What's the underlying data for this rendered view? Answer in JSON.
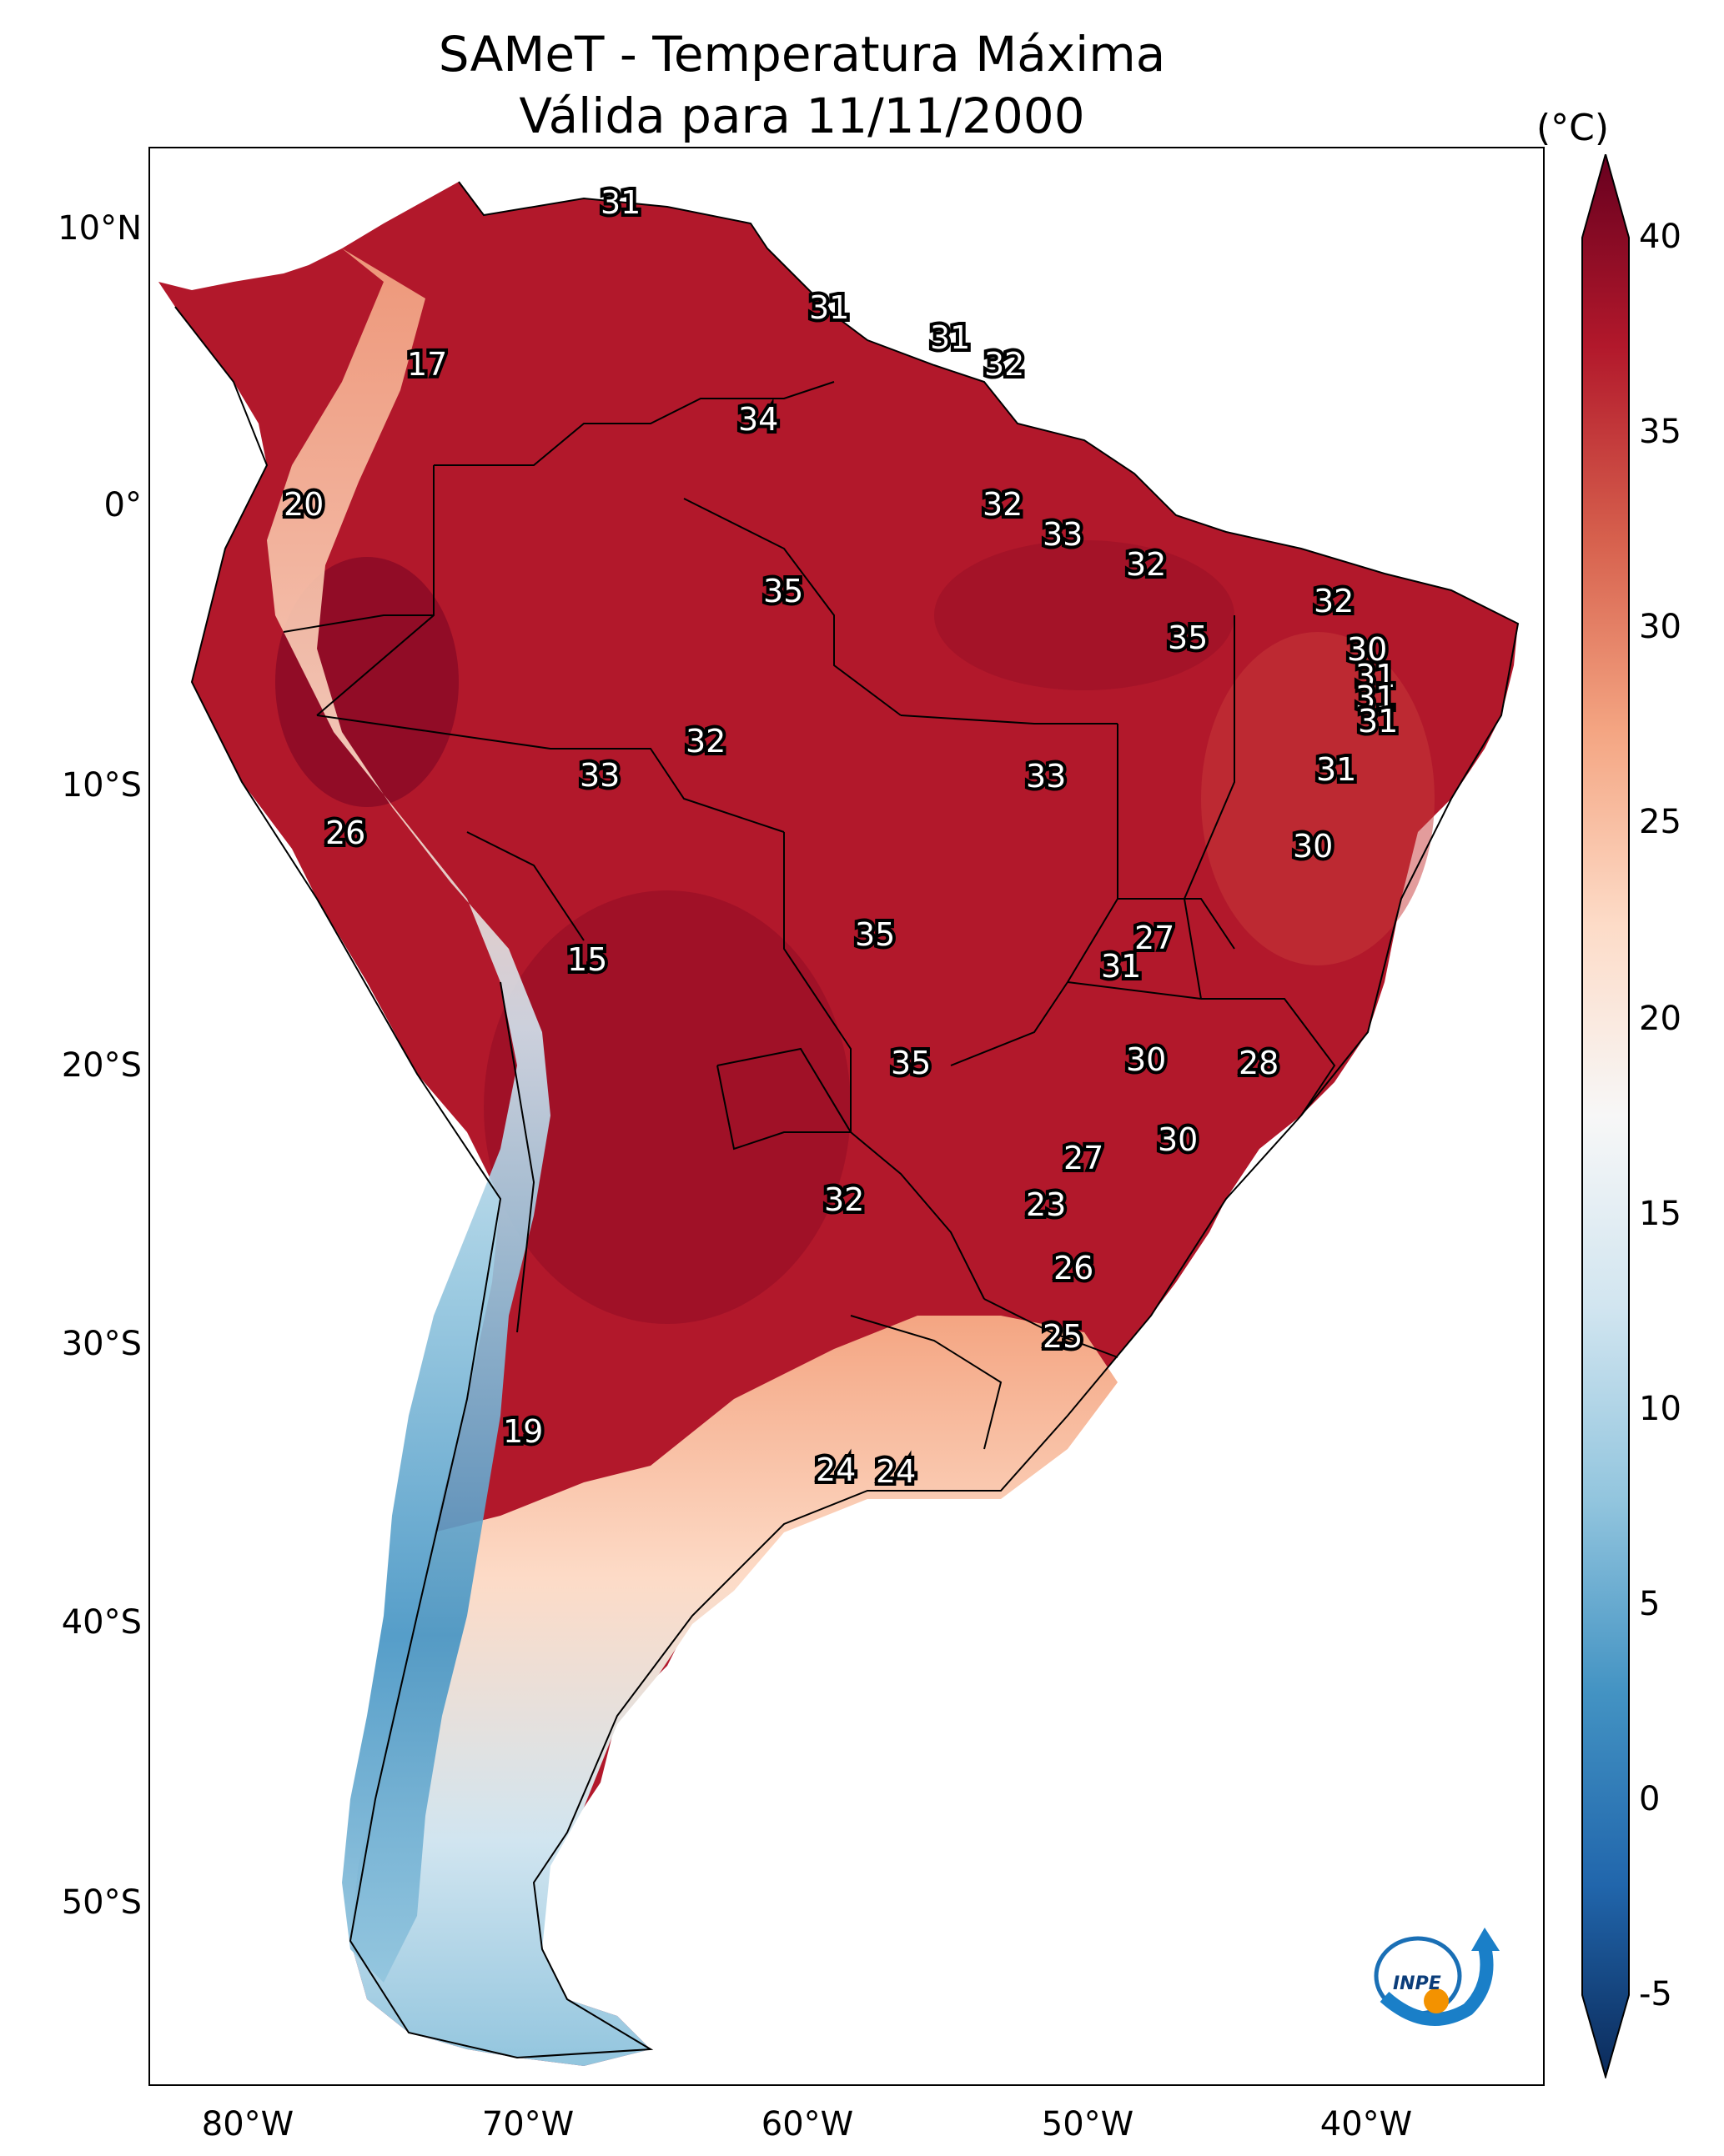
{
  "title_line1": "SAMeT - Temperatura Máxima",
  "title_line2": "Válida para 11/11/2000",
  "colorbar": {
    "unit": "(°C)",
    "ticks": [
      "40",
      "35",
      "30",
      "25",
      "20",
      "15",
      "10",
      "5",
      "0",
      "-5"
    ],
    "range": [
      -5,
      40
    ],
    "colors": [
      "#0b2a5a",
      "#2166ac",
      "#4393c3",
      "#92c5de",
      "#d1e5f0",
      "#f7f7f7",
      "#fddbc7",
      "#f4a582",
      "#d6604d",
      "#b2182b",
      "#67001f"
    ]
  },
  "axes": {
    "lat_labels": [
      "10°N",
      "0°",
      "10°S",
      "20°S",
      "30°S",
      "40°S",
      "50°S"
    ],
    "lon_labels": [
      "80°W",
      "70°W",
      "60°W",
      "50°W",
      "40°W"
    ]
  },
  "station_values": [
    "31",
    "31",
    "31",
    "32",
    "17",
    "34",
    "20",
    "32",
    "33",
    "35",
    "32",
    "32",
    "35",
    "30",
    "31",
    "31",
    "31",
    "33",
    "32",
    "31",
    "26",
    "33",
    "30",
    "15",
    "35",
    "27",
    "31",
    "35",
    "30",
    "28",
    "30",
    "27",
    "32",
    "23",
    "26",
    "25",
    "19",
    "24",
    "24"
  ],
  "logo": {
    "text": "INPE"
  }
}
